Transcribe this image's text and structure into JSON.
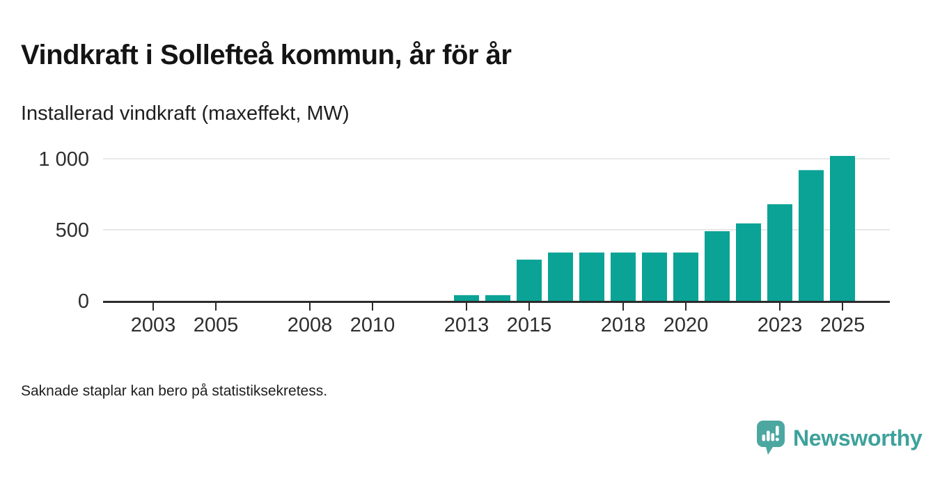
{
  "header": {
    "title": "Vindkraft i Sollefteå kommun, år för år",
    "subtitle": "Installerad vindkraft (maxeffekt, MW)"
  },
  "footnote": "Saknade staplar kan bero på statistiksekretess.",
  "branding": {
    "wordmark": "Newsworthy",
    "logo_icon": "speech-bubble-bar-chart-icon",
    "brand_color": "#4ca7a1",
    "wordmark_color": "#3da19b"
  },
  "chart_data": {
    "type": "bar",
    "title": "Vindkraft i Sollefteå kommun, år för år",
    "subtitle": "Installerad vindkraft (maxeffekt, MW)",
    "ylabel": "Installerad vindkraft (maxeffekt, MW)",
    "xlabel": "",
    "unit": "MW",
    "bar_color": "#0aa396",
    "grid": "horizontal",
    "legend": "none",
    "categories": [
      2002,
      2003,
      2004,
      2005,
      2006,
      2007,
      2008,
      2009,
      2010,
      2011,
      2012,
      2013,
      2014,
      2015,
      2016,
      2017,
      2018,
      2019,
      2020,
      2021,
      2022,
      2023,
      2024,
      2025
    ],
    "values": [
      null,
      null,
      null,
      null,
      null,
      null,
      null,
      null,
      null,
      null,
      null,
      40,
      40,
      290,
      340,
      340,
      340,
      340,
      340,
      490,
      545,
      680,
      920,
      1020
    ],
    "xticks": [
      2003,
      2005,
      2008,
      2010,
      2013,
      2015,
      2018,
      2020,
      2023,
      2025
    ],
    "yticks": [
      {
        "value": 0,
        "label": "0"
      },
      {
        "value": 500,
        "label": "500"
      },
      {
        "value": 1000,
        "label": "1 000"
      }
    ],
    "ylim": [
      0,
      1060
    ]
  }
}
